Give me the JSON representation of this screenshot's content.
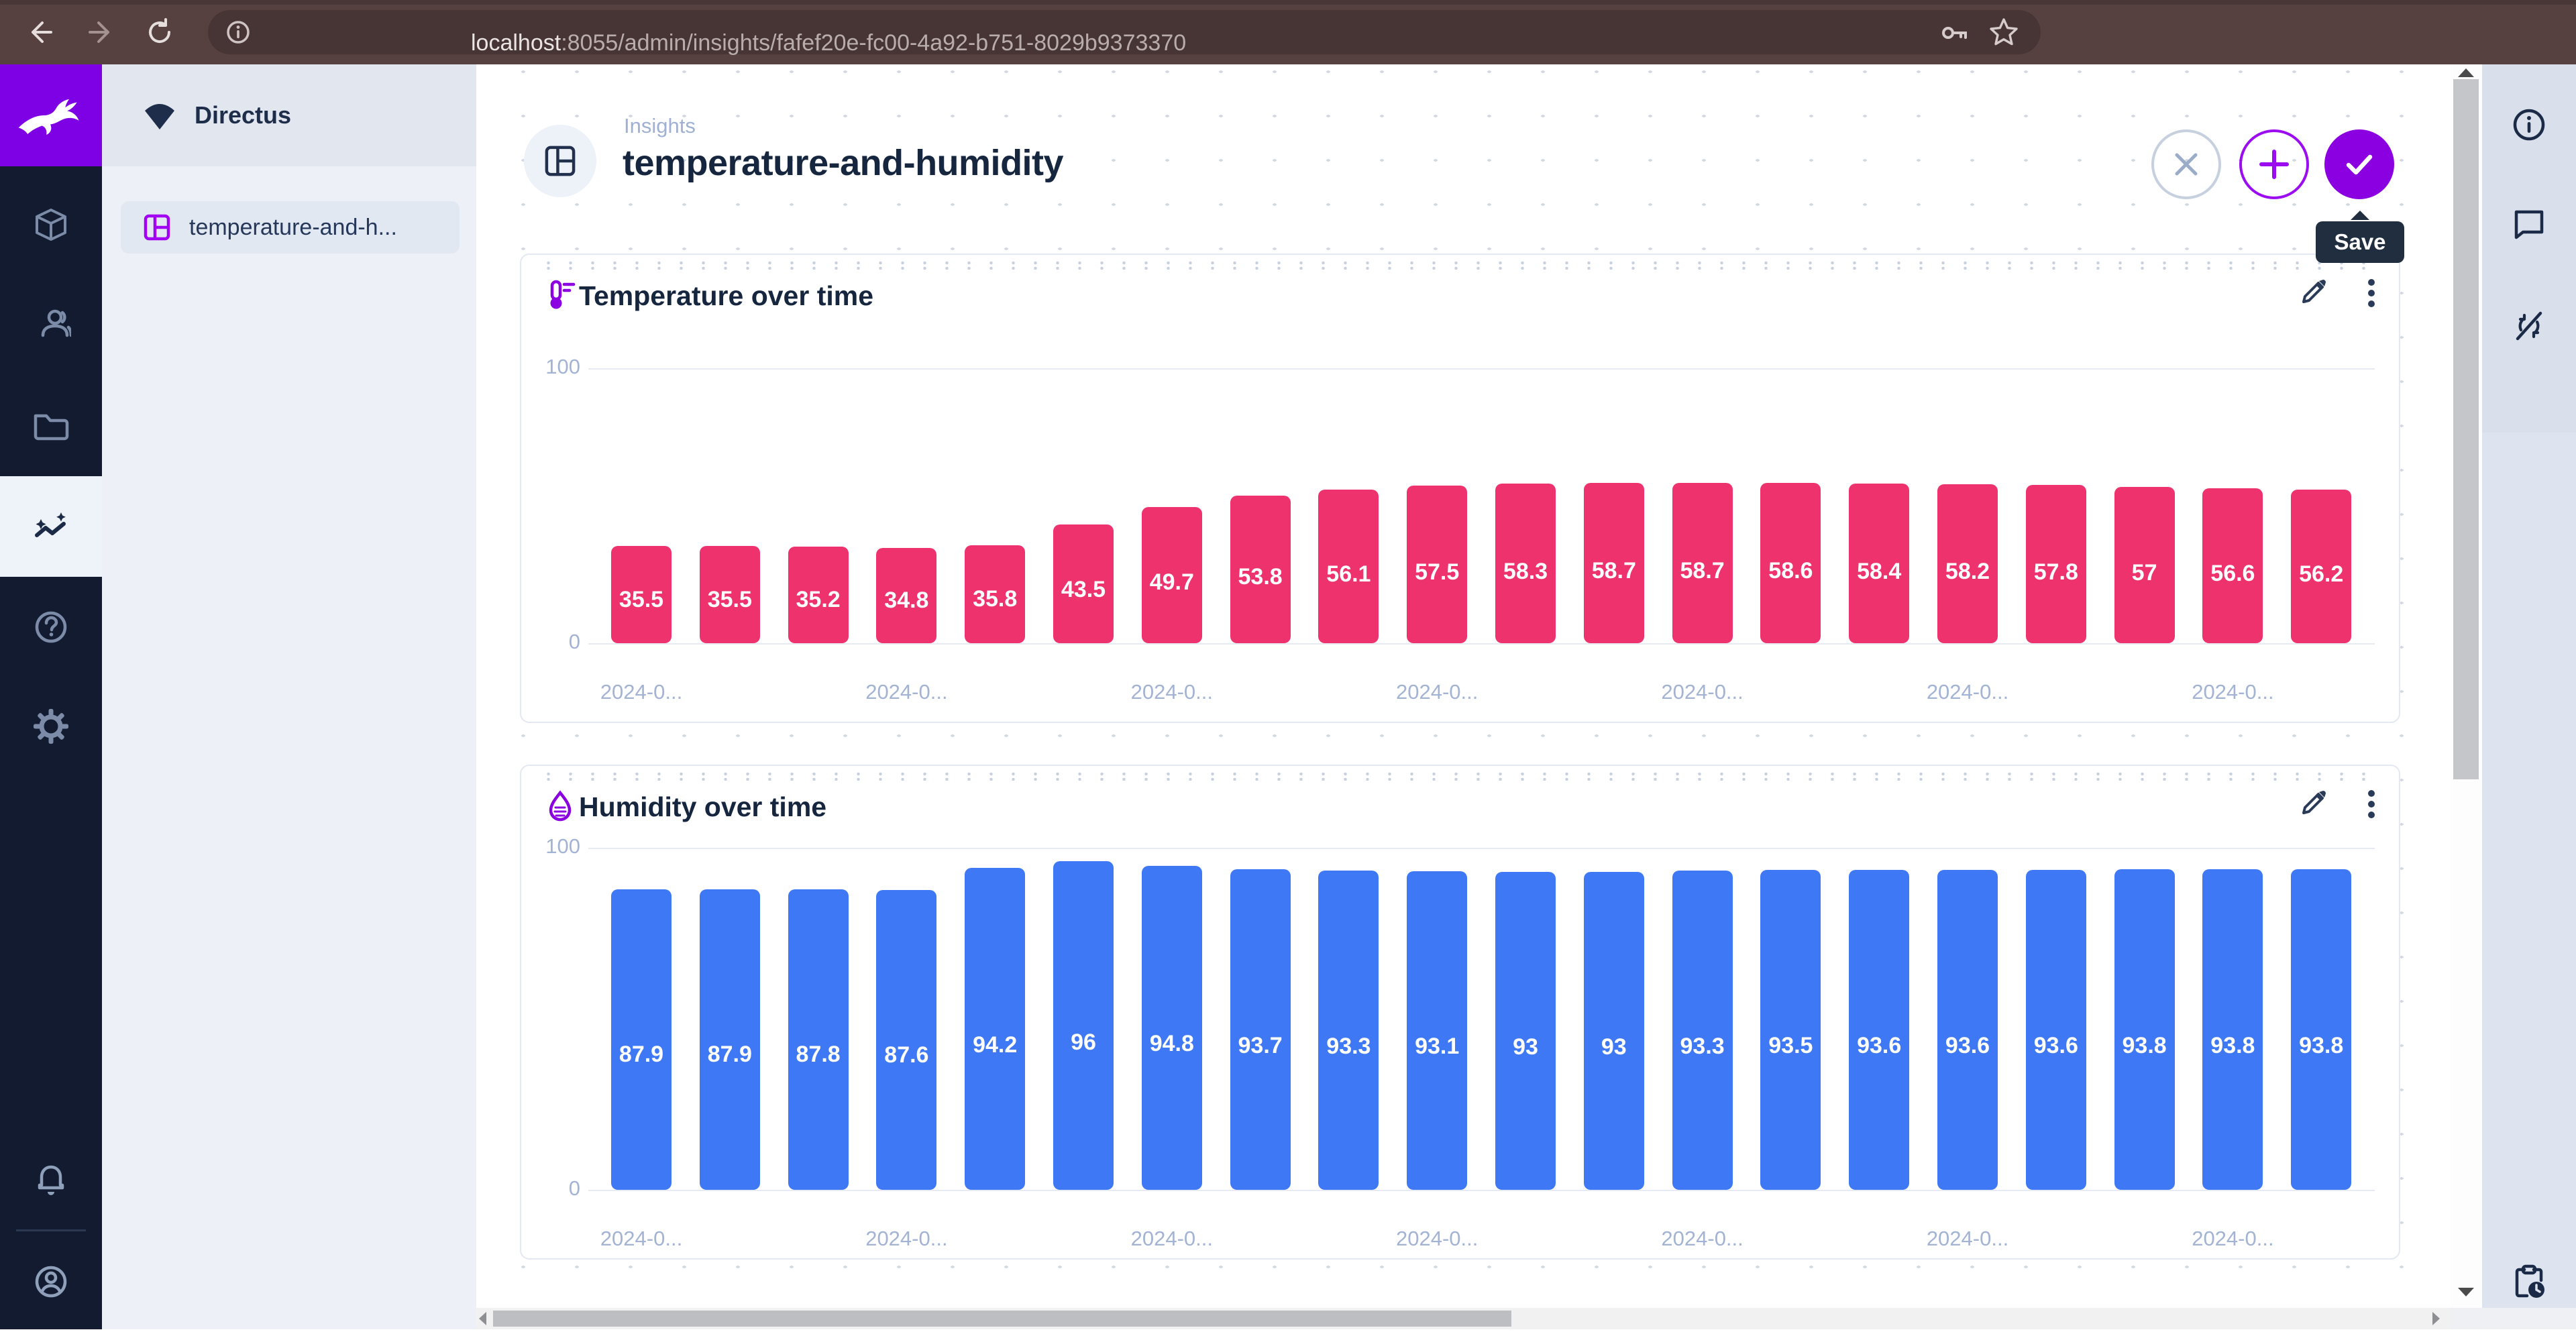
{
  "browser": {
    "url_host": "localhost",
    "url_path": ":8055/admin/insights/fafef20e-fc00-4a92-b751-8029b9373370"
  },
  "module_bar": {
    "modules": [
      "content",
      "user-directory",
      "file-library",
      "insights",
      "documentation",
      "settings"
    ],
    "active_module": "insights",
    "bottom": [
      "notifications",
      "account"
    ]
  },
  "nav": {
    "project_name": "Directus",
    "items": [
      {
        "label": "temperature-and-h...",
        "active": true
      }
    ]
  },
  "header": {
    "breadcrumb": "Insights",
    "title": "temperature-and-humidity",
    "save_tooltip": "Save"
  },
  "right_bar": [
    "info",
    "comments",
    "auto-refresh-disabled",
    "activity"
  ],
  "colors": {
    "accent_purple": "#8a00e0",
    "temperature_bar": "#ee326d",
    "humidity_bar": "#3f78f5",
    "module_bar_bg": "#131b30",
    "title_text": "#15263e",
    "axis_text": "#a3b3d3"
  },
  "chart_data": [
    {
      "type": "bar",
      "title": "Temperature over time",
      "icon": "thermometer-icon",
      "bar_color": "#ee326d",
      "values": [
        35.5,
        35.5,
        35.2,
        34.8,
        35.8,
        43.5,
        49.7,
        53.8,
        56.1,
        57.5,
        58.3,
        58.7,
        58.7,
        58.6,
        58.4,
        58.2,
        57.8,
        57,
        56.6,
        56.2
      ],
      "ylim": [
        0,
        100
      ],
      "y_ticks": [
        "100",
        "0"
      ],
      "x_tick_label": "2024-0...",
      "x_tick_indices": [
        0,
        3,
        6,
        9,
        12,
        15,
        18
      ],
      "grid": "top-and-baseline-only",
      "legend": "none"
    },
    {
      "type": "bar",
      "title": "Humidity over time",
      "icon": "humidity-icon",
      "bar_color": "#3f78f5",
      "values": [
        87.9,
        87.9,
        87.8,
        87.6,
        94.2,
        96,
        94.8,
        93.7,
        93.3,
        93.1,
        93,
        93,
        93.3,
        93.5,
        93.6,
        93.6,
        93.6,
        93.8,
        93.8,
        93.8
      ],
      "ylim": [
        0,
        100
      ],
      "y_ticks": [
        "100",
        "0"
      ],
      "x_tick_label": "2024-0...",
      "x_tick_indices": [
        0,
        3,
        6,
        9,
        12,
        15,
        18
      ],
      "grid": "top-and-baseline-only",
      "legend": "none"
    }
  ]
}
